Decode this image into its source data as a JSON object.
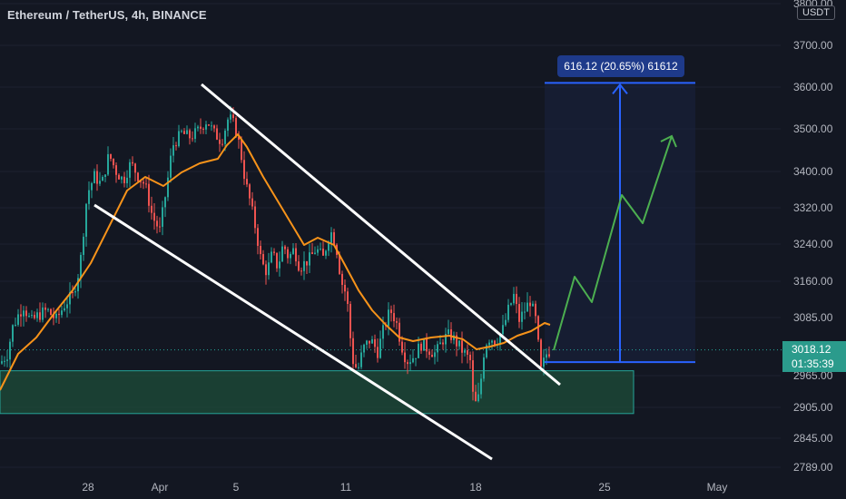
{
  "header": {
    "title": "Ethereum / TetherUS, 4h, BINANCE",
    "currency": "USDT"
  },
  "price": {
    "last": "3018.12",
    "countdown": "01:35:39"
  },
  "measure": {
    "label": "616.12 (20.65%) 61612"
  },
  "colors": {
    "background": "#131722",
    "up": "#26a69a",
    "down": "#ef5350",
    "ma": "#f7931a",
    "channel": "#ffffff",
    "projection": "#4caf50",
    "measure": "#2962ff",
    "support_zone": "#1e4d3a"
  },
  "chart_data": {
    "type": "candlestick",
    "timeframe": "4h",
    "symbol": "ETHUSDT",
    "x_ticks": [
      "28",
      "Apr",
      "5",
      "11",
      "18",
      "25",
      "May"
    ],
    "y_ticks": [
      "3800.00",
      "3700.00",
      "3600.00",
      "3500.00",
      "3400.00",
      "3320.00",
      "3240.00",
      "3160.00",
      "3085.00",
      "2965.00",
      "2905.00",
      "2845.00",
      "2789.00"
    ],
    "ylim": [
      2770,
      3810
    ],
    "last_price": 3018.12,
    "key_levels": {
      "support_zone": [
        2893,
        2975
      ],
      "target": 3610,
      "entry": 2993
    },
    "moving_average": "orange",
    "annotations": [
      "descending channel",
      "support zone",
      "projected breakout path",
      "measure 616.12 (20.65%)"
    ]
  }
}
